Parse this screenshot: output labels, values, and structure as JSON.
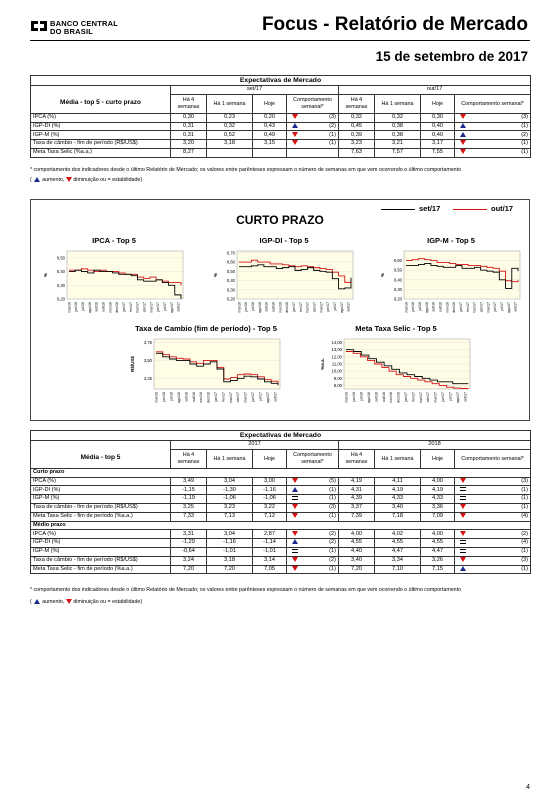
{
  "header": {
    "logo_line1": "BANCO CENTRAL",
    "logo_line2": "DO BRASIL",
    "title": "Focus - Relatório de Mercado",
    "date": "15 de setembro de 2017"
  },
  "top_table": {
    "title": "Expectativas de Mercado",
    "period_left": "set/17",
    "period_right": "out/17",
    "media_label": "Média - top 5 - curto prazo",
    "columns": [
      "Há 4 semanas",
      "Há 1 semana",
      "Hoje",
      "Comportamento semanal*"
    ],
    "rows": [
      {
        "label": "IPCA (%)",
        "l": [
          "0,30",
          "0,23",
          "0,20"
        ],
        "lt": "down",
        "lc": "(3)",
        "r": [
          "0,32",
          "0,32",
          "0,30"
        ],
        "rt": "down",
        "rc": "(3)"
      },
      {
        "label": "IGP-DI (%)",
        "l": [
          "0,31",
          "0,32",
          "0,43"
        ],
        "lt": "up",
        "lc": "(2)",
        "r": [
          "0,45",
          "0,38",
          "0,40"
        ],
        "rt": "up",
        "rc": "(1)"
      },
      {
        "label": "IGP-M (%)",
        "l": [
          "0,31",
          "0,52",
          "0,49"
        ],
        "lt": "down",
        "lc": "(1)",
        "r": [
          "0,39",
          "0,38",
          "0,40"
        ],
        "rt": "up",
        "rc": "(2)"
      },
      {
        "label": "Taxa de câmbio - fim de período (R$/US$)",
        "l": [
          "3,20",
          "3,18",
          "3,15"
        ],
        "lt": "down",
        "lc": "(1)",
        "r": [
          "3,23",
          "3,21",
          "3,17"
        ],
        "rt": "down",
        "rc": "(1)"
      },
      {
        "label": "Meta Taxa Selic (%a.a.)",
        "l": [
          "8,27",
          "",
          ""
        ],
        "lt": "",
        "lc": "",
        "r": [
          "7,63",
          "7,57",
          "7,55"
        ],
        "rt": "down",
        "rc": "(1)"
      }
    ]
  },
  "footnote": "* comportamento dos indicadores desde o último Relatório de Mercado; os valores entre parênteses expressam o número de semanas em que vem ocorrendo o último comportamento",
  "legend_note": {
    "open": "(",
    "up": "aumento,",
    "down": "diminuição ou",
    "eq": "= estabilidade)"
  },
  "charts": {
    "series_left": "set/17",
    "series_right": "out/17",
    "series_left_color": "#000000",
    "series_right_color": "#d41414",
    "panel_bg": "#fffde6",
    "section_title": "CURTO PRAZO",
    "months": [
      "mai/16",
      "jun/16",
      "jul/16",
      "ago/16",
      "set/16",
      "out/16",
      "nov/16",
      "dez/16",
      "jan/17",
      "fev/17",
      "mar/17",
      "abr/17",
      "mai/17",
      "jun/17",
      "jul/17",
      "ago/17",
      "set/17"
    ],
    "ipca": {
      "title": "IPCA - Top 5",
      "ylabel": "%",
      "ylim": [
        0.2,
        0.55
      ],
      "ticks": [
        "0,20",
        "0,30",
        "0,40",
        "0,50"
      ],
      "tickvals": [
        0.2,
        0.3,
        0.4,
        0.5
      ],
      "set17": [
        0.4,
        0.41,
        0.4,
        0.39,
        0.41,
        0.4,
        0.4,
        0.39,
        0.38,
        0.38,
        0.37,
        0.34,
        0.33,
        0.33,
        0.34,
        0.32,
        0.3,
        0.23,
        0.2
      ],
      "out17": [
        0.41,
        0.41,
        0.42,
        0.41,
        0.4,
        0.41,
        0.4,
        0.4,
        0.39,
        0.38,
        0.38,
        0.36,
        0.35,
        0.36,
        0.34,
        0.33,
        0.32,
        0.32,
        0.3
      ]
    },
    "igpdi": {
      "title": "IGP-DI - Top 5",
      "ylabel": "%",
      "ylim": [
        0.2,
        0.72
      ],
      "ticks": [
        "0,20",
        "0,30",
        "0,40",
        "0,50",
        "0,60",
        "0,70"
      ],
      "tickvals": [
        0.2,
        0.3,
        0.4,
        0.5,
        0.6,
        0.7
      ],
      "set17": [
        0.55,
        0.55,
        0.56,
        0.57,
        0.55,
        0.55,
        0.53,
        0.54,
        0.55,
        0.51,
        0.52,
        0.54,
        0.51,
        0.5,
        0.49,
        0.42,
        0.31,
        0.32,
        0.43
      ],
      "out17": [
        0.6,
        0.6,
        0.62,
        0.6,
        0.6,
        0.58,
        0.58,
        0.57,
        0.56,
        0.55,
        0.56,
        0.55,
        0.54,
        0.53,
        0.52,
        0.49,
        0.45,
        0.38,
        0.4
      ]
    },
    "igpm": {
      "title": "IGP-M - Top 5",
      "ylabel": "%",
      "ylim": [
        0.2,
        0.7
      ],
      "ticks": [
        "0,20",
        "0,30",
        "0,40",
        "0,50",
        "0,60"
      ],
      "tickvals": [
        0.2,
        0.3,
        0.4,
        0.5,
        0.6
      ],
      "set17": [
        0.55,
        0.55,
        0.56,
        0.57,
        0.55,
        0.54,
        0.53,
        0.53,
        0.55,
        0.52,
        0.52,
        0.53,
        0.5,
        0.49,
        0.48,
        0.4,
        0.31,
        0.52,
        0.49
      ],
      "out17": [
        0.6,
        0.61,
        0.62,
        0.61,
        0.6,
        0.58,
        0.58,
        0.57,
        0.56,
        0.56,
        0.55,
        0.55,
        0.54,
        0.53,
        0.52,
        0.49,
        0.39,
        0.38,
        0.4
      ]
    },
    "cambio": {
      "title": "Taxa de Cambio (fim de período) - Top 5",
      "ylabel": "R$/US$",
      "ylim": [
        3.1,
        3.8
      ],
      "ticks": [
        "3,25",
        "3,50",
        "3,75"
      ],
      "tickvals": [
        3.25,
        3.5,
        3.75
      ],
      "set17": [
        3.6,
        3.55,
        3.52,
        3.5,
        3.5,
        3.45,
        3.42,
        3.45,
        3.48,
        3.38,
        3.2,
        3.22,
        3.25,
        3.28,
        3.27,
        3.24,
        3.2,
        3.18,
        3.15
      ],
      "out17": [
        3.62,
        3.58,
        3.55,
        3.53,
        3.52,
        3.48,
        3.46,
        3.5,
        3.5,
        3.4,
        3.24,
        3.26,
        3.3,
        3.31,
        3.3,
        3.27,
        3.23,
        3.21,
        3.17
      ]
    },
    "selic": {
      "title": "Meta Taxa Selic - Top 5",
      "ylabel": "%a.a.",
      "ylim": [
        7.5,
        14.5
      ],
      "ticks": [
        "8,00",
        "9,00",
        "10,00",
        "11,00",
        "12,00",
        "13,00",
        "14,00"
      ],
      "tickvals": [
        8,
        9,
        10,
        11,
        12,
        13,
        14
      ],
      "set17": [
        13.0,
        12.75,
        12.25,
        11.75,
        11.25,
        10.75,
        10.25,
        9.75,
        9.5,
        9.25,
        9.0,
        8.75,
        8.5,
        8.5,
        8.25,
        8.25,
        8.27
      ],
      "out17": [
        12.75,
        12.5,
        12.0,
        11.5,
        11.0,
        10.5,
        10.0,
        9.5,
        9.25,
        9.0,
        8.75,
        8.5,
        8.25,
        8.0,
        7.75,
        7.63,
        7.57,
        7.55
      ]
    }
  },
  "bottom_table": {
    "title": "Expectativas de Mercado",
    "period_left": "2017",
    "period_right": "2018",
    "media_label": "Média - top 5",
    "columns": [
      "Há 4 semanas",
      "Há 1 semana",
      "Hoje",
      "Comportamento semanal*"
    ],
    "sections": [
      {
        "name": "Curto prazo",
        "rows": [
          {
            "label": "IPCA (%)",
            "l": [
              "3,49",
              "3,04",
              "3,00"
            ],
            "lt": "down",
            "lc": "(5)",
            "r": [
              "4,19",
              "4,11",
              "4,00"
            ],
            "rt": "down",
            "rc": "(3)"
          },
          {
            "label": "IGP-DI (%)",
            "l": [
              "-1,15",
              "-1,30",
              "-1,16"
            ],
            "lt": "up",
            "lc": "(1)",
            "r": [
              "4,31",
              "4,19",
              "4,19"
            ],
            "rt": "eq",
            "rc": "(1)"
          },
          {
            "label": "IGP-M (%)",
            "l": [
              "-1,19",
              "-1,06",
              "-1,06"
            ],
            "lt": "eq",
            "lc": "(1)",
            "r": [
              "4,39",
              "4,33",
              "4,33"
            ],
            "rt": "eq",
            "rc": "(1)"
          },
          {
            "label": "Taxa de câmbio - fim de período (R$/US$)",
            "l": [
              "3,25",
              "3,23",
              "3,22"
            ],
            "lt": "down",
            "lc": "(3)",
            "r": [
              "3,37",
              "3,40",
              "3,36"
            ],
            "rt": "down",
            "rc": "(1)"
          },
          {
            "label": "Meta Taxa Selic - fim de período (%a.a.)",
            "l": [
              "7,33",
              "7,13",
              "7,12"
            ],
            "lt": "down",
            "lc": "(1)",
            "r": [
              "7,39",
              "7,18",
              "7,09"
            ],
            "rt": "down",
            "rc": "(4)"
          }
        ]
      },
      {
        "name": "Médio prazo",
        "rows": [
          {
            "label": "IPCA (%)",
            "l": [
              "3,31",
              "3,04",
              "2,87"
            ],
            "lt": "down",
            "lc": "(2)",
            "r": [
              "4,00",
              "4,02",
              "4,00"
            ],
            "rt": "down",
            "rc": "(2)"
          },
          {
            "label": "IGP-DI (%)",
            "l": [
              "-1,29",
              "-1,16",
              "-1,14"
            ],
            "lt": "up",
            "lc": "(2)",
            "r": [
              "4,55",
              "4,55",
              "4,55"
            ],
            "rt": "eq",
            "rc": "(4)"
          },
          {
            "label": "IGP-M (%)",
            "l": [
              "-0,64",
              "-1,01",
              "-1,01"
            ],
            "lt": "eq",
            "lc": "(1)",
            "r": [
              "4,40",
              "4,47",
              "4,47"
            ],
            "rt": "eq",
            "rc": "(1)"
          },
          {
            "label": "Taxa de câmbio - fim de período (R$/US$)",
            "l": [
              "3,24",
              "3,18",
              "3,14"
            ],
            "lt": "down",
            "lc": "(2)",
            "r": [
              "3,40",
              "3,34",
              "3,26"
            ],
            "rt": "down",
            "rc": "(3)"
          },
          {
            "label": "Meta Taxa Selic - fim de período (%a.a.)",
            "l": [
              "7,20",
              "7,20",
              "7,05"
            ],
            "lt": "down",
            "lc": "(1)",
            "r": [
              "7,20",
              "7,10",
              "7,15"
            ],
            "rt": "up",
            "rc": "(1)"
          }
        ]
      }
    ]
  },
  "page_number": "4"
}
